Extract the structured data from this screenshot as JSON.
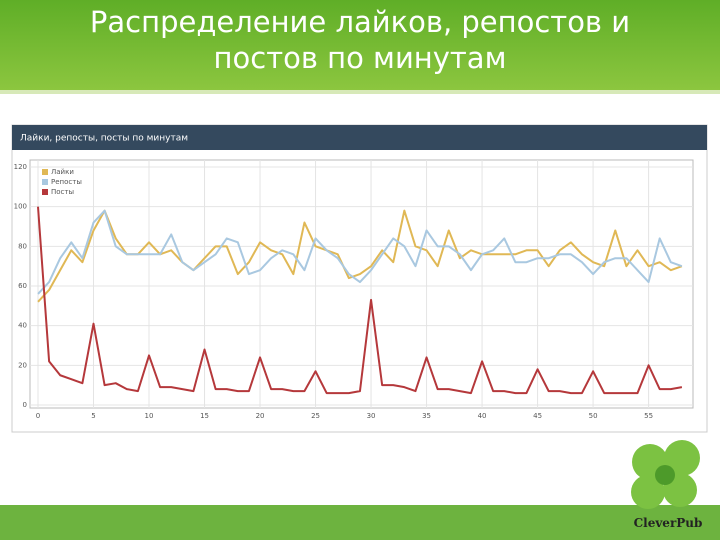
{
  "slide": {
    "title_lines": [
      "Распределение лайков, репостов и",
      "постов по минутам"
    ],
    "logo": "CleverPub"
  },
  "chart_data": {
    "type": "line",
    "title": "Лайки, репосты, посты по минутам",
    "x": [
      0,
      1,
      2,
      3,
      4,
      5,
      6,
      7,
      8,
      9,
      10,
      11,
      12,
      13,
      14,
      15,
      16,
      17,
      18,
      19,
      20,
      21,
      22,
      23,
      24,
      25,
      26,
      27,
      28,
      29,
      30,
      31,
      32,
      33,
      34,
      35,
      36,
      37,
      38,
      39,
      40,
      41,
      42,
      43,
      44,
      45,
      46,
      47,
      48,
      49,
      50,
      51,
      52,
      53,
      54,
      55,
      56,
      57,
      58
    ],
    "series": [
      {
        "name": "Лайки",
        "color": "#e0b855",
        "values": [
          52,
          58,
          68,
          78,
          72,
          88,
          98,
          84,
          76,
          76,
          82,
          76,
          78,
          72,
          68,
          74,
          80,
          80,
          66,
          72,
          82,
          78,
          76,
          66,
          92,
          80,
          78,
          76,
          64,
          66,
          70,
          78,
          72,
          98,
          80,
          78,
          70,
          88,
          74,
          78,
          76,
          76,
          76,
          76,
          78,
          78,
          70,
          78,
          82,
          76,
          72,
          70,
          88,
          70,
          78,
          70,
          72,
          68,
          70
        ]
      },
      {
        "name": "Репосты",
        "color": "#a9c8e0",
        "values": [
          56,
          62,
          74,
          82,
          74,
          92,
          98,
          80,
          76,
          76,
          76,
          76,
          86,
          72,
          68,
          72,
          76,
          84,
          82,
          66,
          68,
          74,
          78,
          76,
          68,
          84,
          78,
          74,
          66,
          62,
          68,
          76,
          84,
          80,
          70,
          88,
          80,
          80,
          76,
          68,
          76,
          78,
          84,
          72,
          72,
          74,
          74,
          76,
          76,
          72,
          66,
          72,
          74,
          74,
          68,
          62,
          84,
          72,
          70
        ]
      },
      {
        "name": "Посты",
        "color": "#b5383b",
        "values": [
          100,
          22,
          15,
          13,
          11,
          41,
          10,
          11,
          8,
          7,
          25,
          9,
          9,
          8,
          7,
          28,
          8,
          8,
          7,
          7,
          24,
          8,
          8,
          7,
          7,
          17,
          6,
          6,
          6,
          7,
          53,
          10,
          10,
          9,
          7,
          24,
          8,
          8,
          7,
          6,
          22,
          7,
          7,
          6,
          6,
          18,
          7,
          7,
          6,
          6,
          17,
          6,
          6,
          6,
          6,
          20,
          8,
          8,
          9
        ]
      }
    ],
    "xlim": [
      0,
      59
    ],
    "xticks": [
      0,
      5,
      10,
      15,
      20,
      25,
      30,
      35,
      40,
      45,
      50,
      55
    ],
    "ylim": [
      0,
      120
    ],
    "yticks": [
      0,
      20,
      40,
      60,
      80,
      100,
      120
    ],
    "grid": true,
    "legend": "top-left"
  }
}
